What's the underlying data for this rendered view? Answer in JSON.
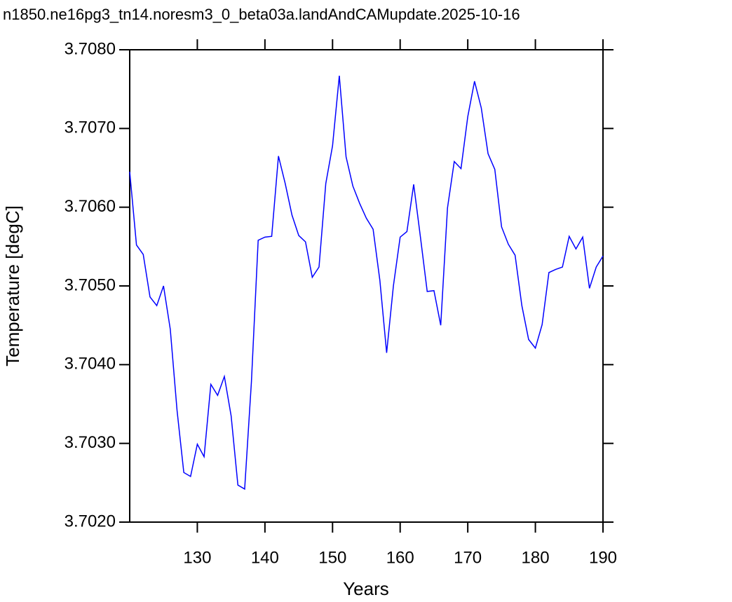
{
  "chart_data": {
    "type": "line",
    "title": "n1850.ne16pg3_tn14.noresm3_0_beta03a.landAndCAMupdate.2025-10-16",
    "x_label": "Years",
    "y_label": "Temperature [degC]",
    "x": [
      120,
      121,
      122,
      123,
      124,
      125,
      126,
      127,
      128,
      129,
      130,
      131,
      132,
      133,
      134,
      135,
      136,
      137,
      138,
      139,
      140,
      141,
      142,
      143,
      144,
      145,
      146,
      147,
      148,
      149,
      150,
      151,
      152,
      153,
      154,
      155,
      156,
      157,
      158,
      159,
      160,
      161,
      162,
      163,
      164,
      165,
      166,
      167,
      168,
      169,
      170,
      171,
      172,
      173,
      174,
      175,
      176,
      177,
      178,
      179,
      180,
      181,
      182,
      183,
      184,
      185,
      186,
      187,
      188,
      189,
      190
    ],
    "series": [
      {
        "name": "Temperature",
        "color": "#0000ff",
        "values": [
          3.70645,
          3.70552,
          3.7054,
          3.70486,
          3.70475,
          3.705,
          3.70445,
          3.70342,
          3.70263,
          3.70258,
          3.70299,
          3.70283,
          3.70375,
          3.70361,
          3.70385,
          3.70335,
          3.70247,
          3.70242,
          3.70378,
          3.70558,
          3.70562,
          3.70563,
          3.70665,
          3.7063,
          3.7059,
          3.70564,
          3.70556,
          3.70511,
          3.70524,
          3.7063,
          3.70678,
          3.70767,
          3.70664,
          3.70627,
          3.70605,
          3.70586,
          3.70572,
          3.70507,
          3.70415,
          3.705,
          3.70562,
          3.70569,
          3.70629,
          3.70562,
          3.70493,
          3.70494,
          3.7045,
          3.70599,
          3.70658,
          3.70649,
          3.70715,
          3.7076,
          3.70726,
          3.70668,
          3.70648,
          3.70575,
          3.70553,
          3.70539,
          3.70475,
          3.70432,
          3.70421,
          3.70451,
          3.70517,
          3.70521,
          3.70524,
          3.70563,
          3.70547,
          3.70562,
          3.70497,
          3.70524,
          3.70538
        ]
      }
    ],
    "xlim": [
      120,
      190
    ],
    "xticks": [
      130,
      140,
      150,
      160,
      170,
      180,
      190
    ],
    "ylim": [
      3.702,
      3.708
    ],
    "yticks": [
      {
        "value": 3.702,
        "label": "3.7020"
      },
      {
        "value": 3.703,
        "label": "3.7030"
      },
      {
        "value": 3.704,
        "label": "3.7040"
      },
      {
        "value": 3.705,
        "label": "3.7050"
      },
      {
        "value": 3.706,
        "label": "3.7060"
      },
      {
        "value": 3.707,
        "label": "3.7070"
      },
      {
        "value": 3.708,
        "label": "3.7080"
      }
    ],
    "grid": false
  }
}
